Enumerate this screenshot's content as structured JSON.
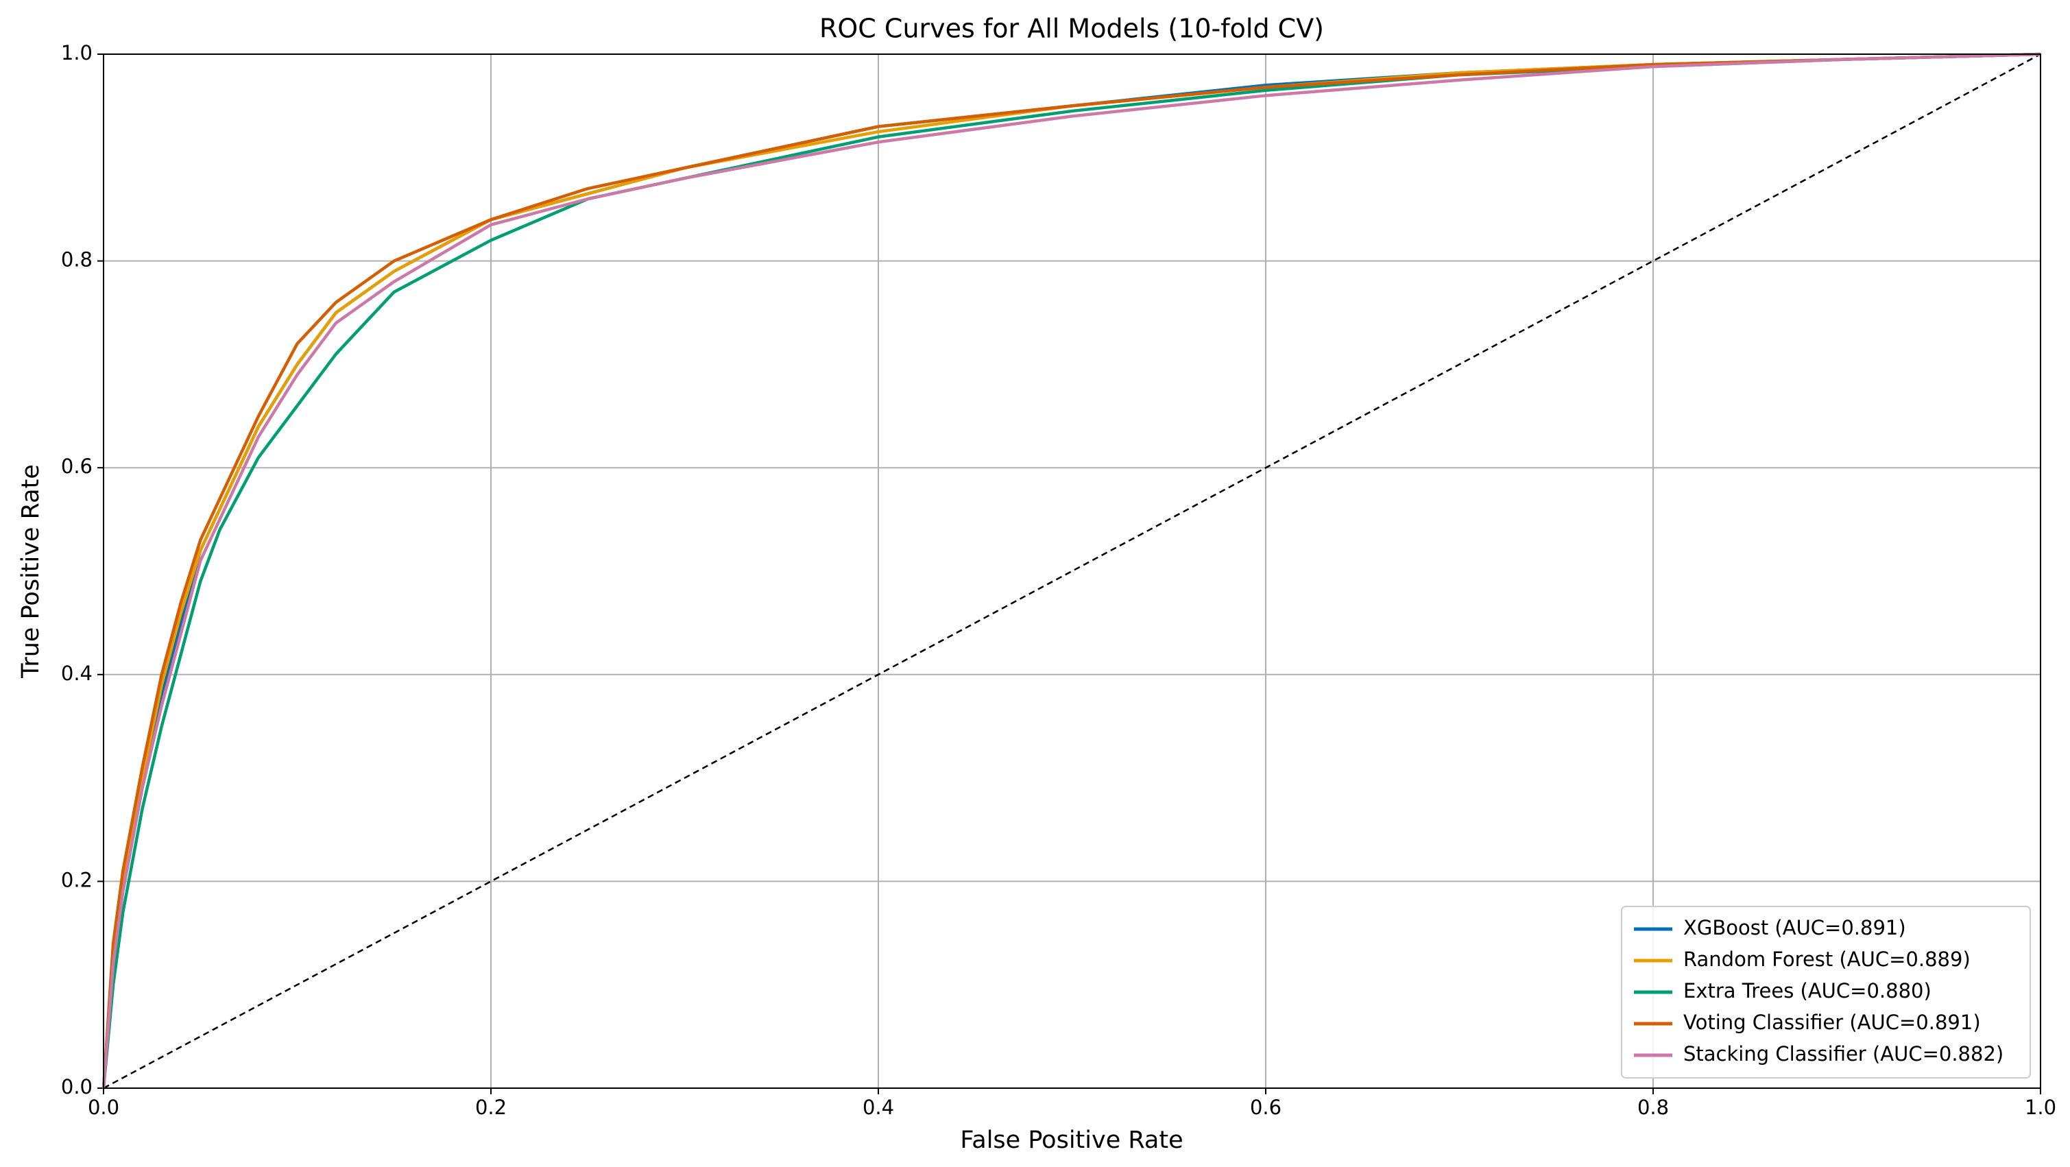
{
  "chart_data": {
    "type": "line",
    "title": "ROC Curves for All Models (10-fold CV)",
    "x_label": "False Positive Rate",
    "y_label": "True Positive Rate",
    "x": [
      0,
      0.005,
      0.01,
      0.02,
      0.03,
      0.04,
      0.05,
      0.06,
      0.08,
      0.1,
      0.12,
      0.15,
      0.2,
      0.25,
      0.3,
      0.4,
      0.5,
      0.6,
      0.7,
      0.8,
      0.9,
      1
    ],
    "series": [
      {
        "name": "XGBoost (AUC=0.891)",
        "color": "#0072b2",
        "values": [
          0,
          0.13,
          0.2,
          0.3,
          0.38,
          0.45,
          0.52,
          0.56,
          0.64,
          0.7,
          0.75,
          0.79,
          0.84,
          0.865,
          0.89,
          0.93,
          0.95,
          0.97,
          0.982,
          0.99,
          0.995,
          1
        ]
      },
      {
        "name": "Random Forest (AUC=0.889)",
        "color": "#e69f00",
        "values": [
          0,
          0.13,
          0.2,
          0.3,
          0.39,
          0.46,
          0.52,
          0.56,
          0.64,
          0.7,
          0.75,
          0.79,
          0.84,
          0.865,
          0.89,
          0.925,
          0.95,
          0.968,
          0.982,
          0.99,
          0.995,
          1
        ]
      },
      {
        "name": "Extra Trees (AUC=0.880)",
        "color": "#009e73",
        "values": [
          0,
          0.1,
          0.17,
          0.27,
          0.35,
          0.42,
          0.49,
          0.54,
          0.61,
          0.66,
          0.71,
          0.77,
          0.82,
          0.86,
          0.88,
          0.92,
          0.945,
          0.965,
          0.98,
          0.988,
          0.995,
          1
        ]
      },
      {
        "name": "Voting Classifier (AUC=0.891)",
        "color": "#d55e00",
        "values": [
          0,
          0.14,
          0.21,
          0.31,
          0.4,
          0.47,
          0.53,
          0.57,
          0.65,
          0.72,
          0.76,
          0.8,
          0.84,
          0.87,
          0.89,
          0.93,
          0.95,
          0.968,
          0.98,
          0.99,
          0.995,
          1
        ]
      },
      {
        "name": "Stacking Classifier (AUC=0.882)",
        "color": "#cc79a7",
        "values": [
          0,
          0.12,
          0.19,
          0.29,
          0.37,
          0.44,
          0.51,
          0.55,
          0.63,
          0.69,
          0.74,
          0.78,
          0.835,
          0.86,
          0.88,
          0.915,
          0.94,
          0.96,
          0.975,
          0.988,
          0.995,
          1
        ]
      }
    ],
    "diagonal": {
      "x": [
        0,
        1
      ],
      "y": [
        0,
        1
      ],
      "color": "#000000"
    },
    "xlim": [
      0,
      1
    ],
    "ylim": [
      0,
      1
    ],
    "xticks": [
      {
        "value": 0,
        "label": "0.0"
      },
      0.2,
      0.4,
      0.6,
      0.8,
      {
        "value": 1,
        "label": "1.0"
      }
    ],
    "yticks": [
      {
        "value": 0,
        "label": "0.0"
      },
      0.2,
      0.4,
      0.6,
      0.8,
      {
        "value": 1,
        "label": "1.0"
      }
    ],
    "grid": true,
    "legend_position": "lower right"
  }
}
